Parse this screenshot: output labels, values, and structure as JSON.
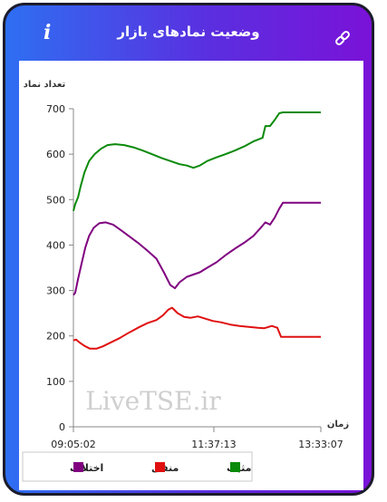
{
  "header": {
    "title": "وضعیت نمادهای بازار",
    "info_icon_glyph": "i",
    "accent_start": "#2e6ff2",
    "accent_end": "#7a12d8"
  },
  "watermark": "LiveTSE.ir",
  "chart_data": {
    "type": "line",
    "ylabel": "تعداد نماد",
    "xlabel": "زمان",
    "ylim": [
      0,
      700
    ],
    "yticks": [
      0,
      100,
      200,
      300,
      400,
      500,
      600,
      700
    ],
    "xtick_labels": [
      "09:05:02",
      "11:37:13",
      "13:33:07"
    ],
    "xlim": [
      "09:05:02",
      "13:33:07"
    ],
    "grid": false,
    "legend_position": "bottom",
    "series": [
      {
        "name": "مثبت",
        "color": "#0a8a0a",
        "points": [
          [
            "09:05:02",
            475
          ],
          [
            "09:07",
            490
          ],
          [
            "09:10",
            505
          ],
          [
            "09:13",
            530
          ],
          [
            "09:17",
            560
          ],
          [
            "09:22",
            585
          ],
          [
            "09:28",
            600
          ],
          [
            "09:35",
            612
          ],
          [
            "09:42",
            620
          ],
          [
            "09:50",
            622
          ],
          [
            "10:00",
            620
          ],
          [
            "10:10",
            615
          ],
          [
            "10:20",
            608
          ],
          [
            "10:30",
            600
          ],
          [
            "10:40",
            592
          ],
          [
            "10:50",
            585
          ],
          [
            "11:00",
            578
          ],
          [
            "11:08",
            575
          ],
          [
            "11:15",
            570
          ],
          [
            "11:22",
            575
          ],
          [
            "11:30",
            585
          ],
          [
            "11:40",
            593
          ],
          [
            "11:50",
            600
          ],
          [
            "12:00",
            608
          ],
          [
            "12:10",
            617
          ],
          [
            "12:20",
            628
          ],
          [
            "12:25",
            632
          ],
          [
            "12:30",
            636
          ],
          [
            "12:33",
            662
          ],
          [
            "12:38",
            662
          ],
          [
            "12:43",
            675
          ],
          [
            "12:48",
            690
          ],
          [
            "12:52",
            692
          ],
          [
            "13:33:07",
            692
          ]
        ]
      },
      {
        "name": "منفی",
        "color": "#e01010",
        "points": [
          [
            "09:05:02",
            190
          ],
          [
            "09:08",
            192
          ],
          [
            "09:12",
            185
          ],
          [
            "09:17",
            178
          ],
          [
            "09:23",
            172
          ],
          [
            "09:30",
            172
          ],
          [
            "09:37",
            177
          ],
          [
            "09:45",
            185
          ],
          [
            "09:55",
            195
          ],
          [
            "10:05",
            207
          ],
          [
            "10:15",
            218
          ],
          [
            "10:25",
            228
          ],
          [
            "10:35",
            235
          ],
          [
            "10:42",
            245
          ],
          [
            "10:48",
            258
          ],
          [
            "10:52",
            262
          ],
          [
            "10:58",
            250
          ],
          [
            "11:05",
            242
          ],
          [
            "11:12",
            240
          ],
          [
            "11:20",
            243
          ],
          [
            "11:28",
            238
          ],
          [
            "11:36",
            233
          ],
          [
            "11:45",
            230
          ],
          [
            "11:55",
            225
          ],
          [
            "12:05",
            222
          ],
          [
            "12:15",
            220
          ],
          [
            "12:25",
            218
          ],
          [
            "12:32",
            217
          ],
          [
            "12:40",
            222
          ],
          [
            "12:46",
            218
          ],
          [
            "12:50",
            198
          ],
          [
            "13:33:07",
            198
          ]
        ]
      },
      {
        "name": "اختلاف",
        "color": "#800080",
        "points": [
          [
            "09:05:02",
            290
          ],
          [
            "09:07",
            295
          ],
          [
            "09:10",
            325
          ],
          [
            "09:14",
            360
          ],
          [
            "09:18",
            395
          ],
          [
            "09:22",
            420
          ],
          [
            "09:27",
            438
          ],
          [
            "09:33",
            448
          ],
          [
            "09:40",
            450
          ],
          [
            "09:48",
            445
          ],
          [
            "09:55",
            435
          ],
          [
            "10:05",
            420
          ],
          [
            "10:15",
            405
          ],
          [
            "10:25",
            388
          ],
          [
            "10:35",
            370
          ],
          [
            "10:43",
            340
          ],
          [
            "10:50",
            312
          ],
          [
            "10:55",
            305
          ],
          [
            "11:00",
            318
          ],
          [
            "11:08",
            330
          ],
          [
            "11:15",
            335
          ],
          [
            "11:22",
            340
          ],
          [
            "11:30",
            350
          ],
          [
            "11:40",
            362
          ],
          [
            "11:50",
            378
          ],
          [
            "12:00",
            392
          ],
          [
            "12:10",
            405
          ],
          [
            "12:20",
            420
          ],
          [
            "12:28",
            438
          ],
          [
            "12:33",
            450
          ],
          [
            "12:38",
            445
          ],
          [
            "12:43",
            460
          ],
          [
            "12:48",
            480
          ],
          [
            "12:52",
            493
          ],
          [
            "13:33:07",
            493
          ]
        ]
      }
    ]
  }
}
